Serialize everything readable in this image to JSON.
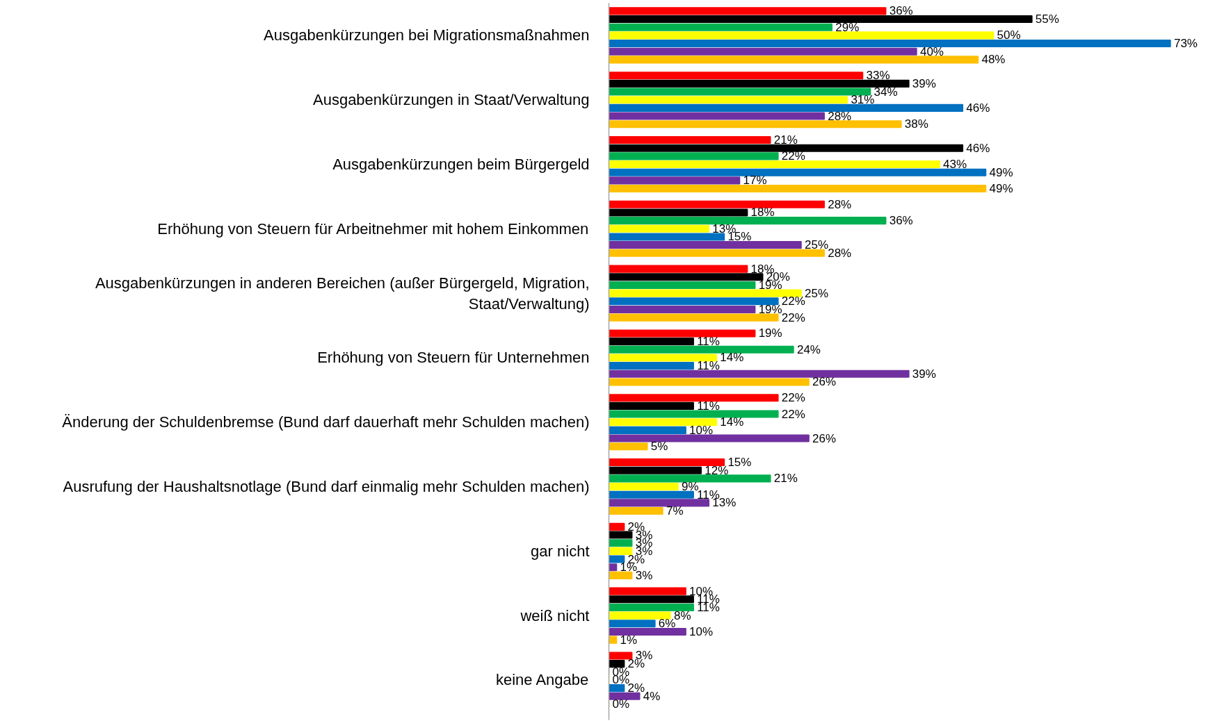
{
  "chart_data": {
    "type": "bar",
    "orientation": "horizontal",
    "tick_labels": "y",
    "categories": [
      "Ausgabenkürzungen bei Migrationsmaßnahmen",
      "Ausgabenkürzungen in Staat/Verwaltung",
      "Ausgabenkürzungen beim Bürgergeld",
      "Erhöhung von Steuern für Arbeitnehmer mit hohem Einkommen",
      "Ausgabenkürzungen in anderen Bereichen (außer Bürgergeld, Migration, Staat/Verwaltung)",
      "Erhöhung von Steuern für Unternehmen",
      "Änderung der Schuldenbremse (Bund darf dauerhaft mehr Schulden machen)",
      "Ausrufung der Haushaltsnotlage (Bund darf einmalig mehr Schulden machen)",
      "gar nicht",
      "weiß nicht",
      "keine Angabe"
    ],
    "series": [
      {
        "color": "#ff0000",
        "values": [
          36,
          33,
          21,
          28,
          18,
          19,
          22,
          15,
          2,
          10,
          3
        ],
        "value_labels": [
          "36%",
          "33%",
          "21%",
          "28%",
          "18%",
          "19%",
          "22%",
          "15%",
          "2%",
          "10%",
          "3%"
        ]
      },
      {
        "color": "#000000",
        "values": [
          55,
          39,
          46,
          18,
          20,
          11,
          11,
          12,
          3,
          11,
          2
        ],
        "value_labels": [
          "55%",
          "39%",
          "46%",
          "18%",
          "20%",
          "11%",
          "11%",
          "12%",
          "3%",
          "11%",
          "2%"
        ]
      },
      {
        "color": "#00b050",
        "values": [
          29,
          34,
          22,
          36,
          19,
          24,
          22,
          21,
          3,
          11,
          0
        ],
        "value_labels": [
          "29%",
          "34%",
          "22%",
          "36%",
          "19%",
          "24%",
          "22%",
          "21%",
          "3%",
          "11%",
          "0%"
        ]
      },
      {
        "color": "#ffff00",
        "values": [
          50,
          31,
          43,
          13,
          25,
          14,
          14,
          9,
          3,
          8,
          0
        ],
        "value_labels": [
          "50%",
          "31%",
          "43%",
          "13%",
          "25%",
          "14%",
          "14%",
          "9%",
          "3%",
          "8%",
          "0%"
        ]
      },
      {
        "color": "#0070c0",
        "values": [
          73,
          46,
          49,
          15,
          22,
          11,
          10,
          11,
          2,
          6,
          2
        ],
        "value_labels": [
          "73%",
          "46%",
          "49%",
          "15%",
          "22%",
          "11%",
          "10%",
          "11%",
          "2%",
          "6%",
          "2%"
        ]
      },
      {
        "color": "#7030a0",
        "values": [
          40,
          28,
          17,
          25,
          19,
          39,
          26,
          13,
          1,
          10,
          4
        ],
        "value_labels": [
          "40%",
          "28%",
          "17%",
          "25%",
          "19%",
          "39%",
          "26%",
          "13%",
          "1%",
          "10%",
          "4%"
        ]
      },
      {
        "color": "#ffc000",
        "values": [
          48,
          38,
          49,
          28,
          22,
          26,
          5,
          7,
          3,
          1,
          0
        ],
        "value_labels": [
          "48%",
          "38%",
          "49%",
          "28%",
          "22%",
          "26%",
          "5%",
          "7%",
          "3%",
          "1%",
          "0%"
        ]
      }
    ]
  }
}
